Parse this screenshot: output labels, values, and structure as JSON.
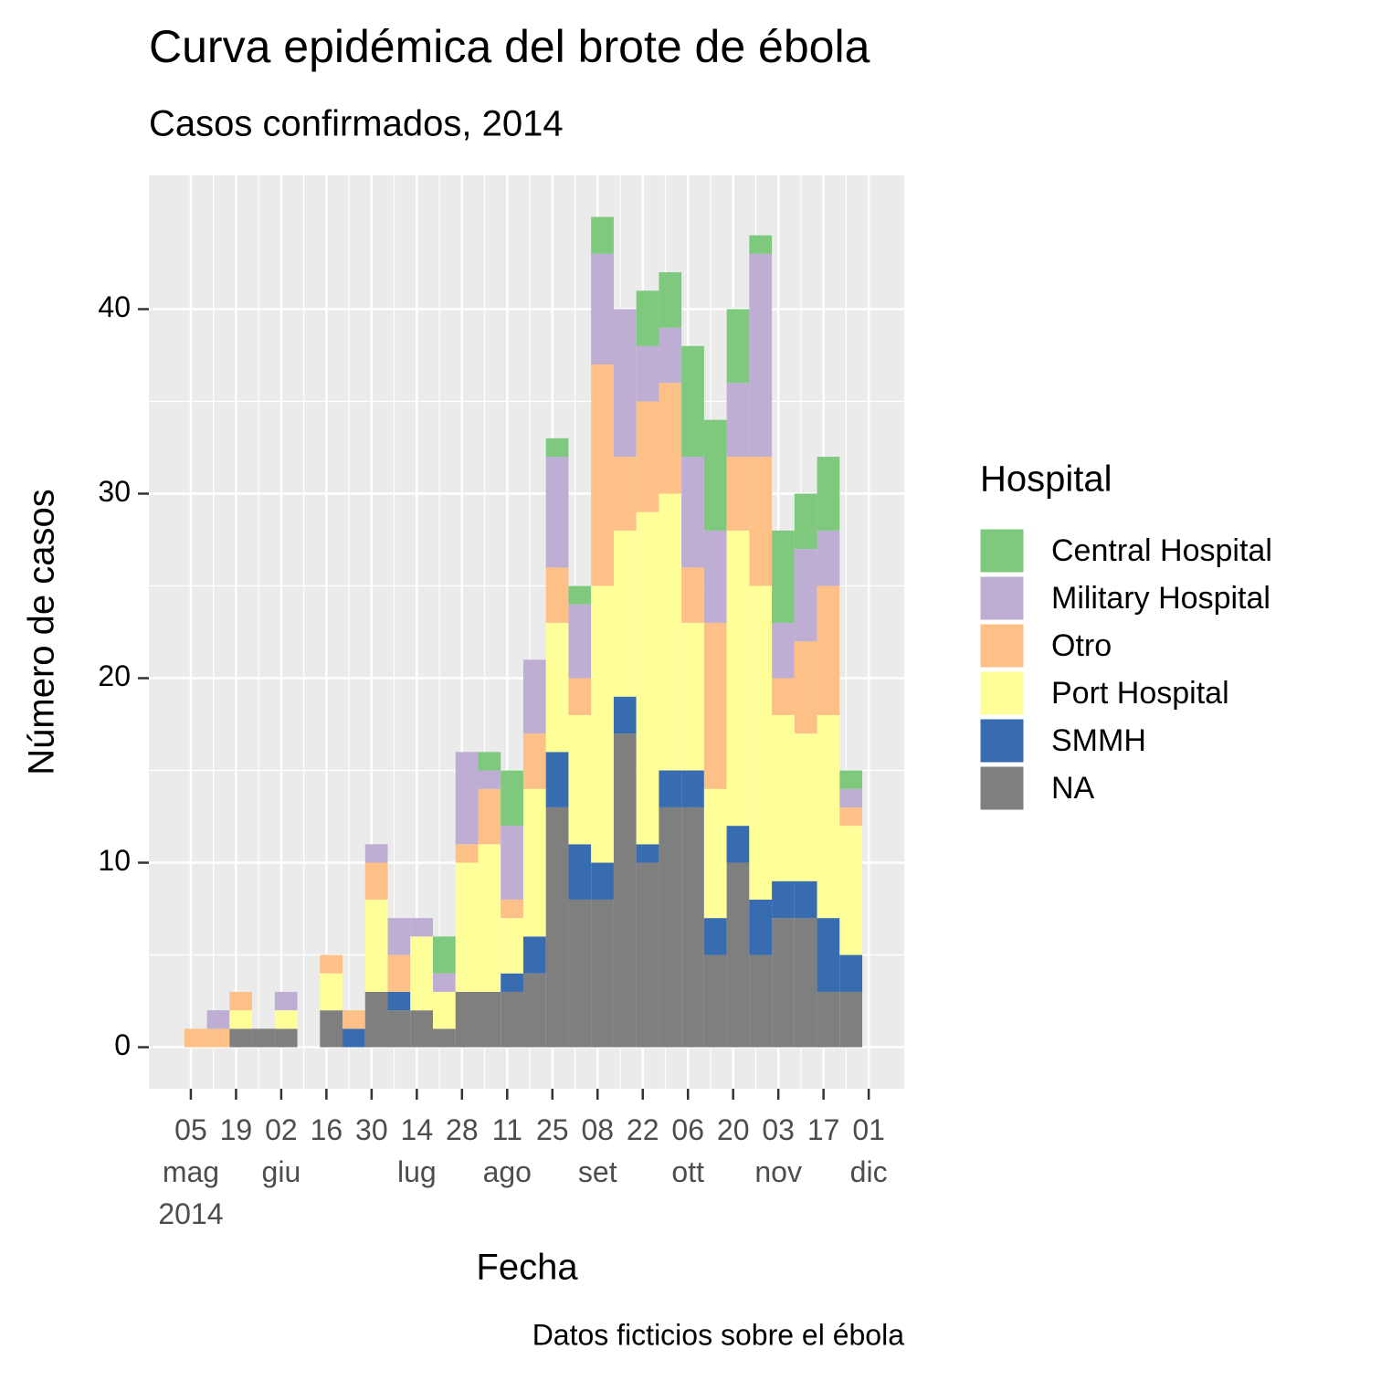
{
  "chart_data": {
    "type": "histogram",
    "title": "Curva epidémica del brote de ébola",
    "subtitle": "Casos confirmados, 2014",
    "x_label": "Fecha",
    "y_label": "Número de casos",
    "caption": "Datos ficticios sobre el ébola",
    "legend_title": "Hospital",
    "legend_position": "right",
    "stacked": true,
    "grid": true,
    "bins": [
      "2014-05-03",
      "2014-05-10",
      "2014-05-17",
      "2014-05-24",
      "2014-05-31",
      "2014-06-07",
      "2014-06-14",
      "2014-06-21",
      "2014-06-28",
      "2014-07-05",
      "2014-07-12",
      "2014-07-19",
      "2014-07-26",
      "2014-08-02",
      "2014-08-09",
      "2014-08-16",
      "2014-08-23",
      "2014-08-30",
      "2014-09-06",
      "2014-09-13",
      "2014-09-20",
      "2014-09-27",
      "2014-10-04",
      "2014-10-11",
      "2014-10-18",
      "2014-10-25",
      "2014-11-01",
      "2014-11-08",
      "2014-11-15",
      "2014-11-22",
      "2014-11-29"
    ],
    "series": [
      {
        "name": "Central Hospital",
        "color": "#7fc97f",
        "values": [
          0,
          0,
          0,
          0,
          0,
          0,
          0,
          0,
          0,
          0,
          0,
          2,
          0,
          1,
          3,
          0,
          1,
          1,
          2,
          0,
          3,
          3,
          6,
          6,
          4,
          1,
          5,
          3,
          4,
          1
        ]
      },
      {
        "name": "Military Hospital",
        "color": "#beaed4",
        "values": [
          0,
          1,
          0,
          0,
          1,
          0,
          0,
          0,
          1,
          2,
          1,
          1,
          5,
          1,
          4,
          4,
          6,
          4,
          6,
          8,
          3,
          3,
          6,
          5,
          4,
          11,
          3,
          5,
          3,
          1
        ]
      },
      {
        "name": "Otro",
        "color": "#fdc086",
        "values": [
          1,
          1,
          1,
          0,
          0,
          0,
          1,
          1,
          2,
          2,
          0,
          0,
          1,
          3,
          1,
          3,
          3,
          2,
          12,
          4,
          6,
          6,
          3,
          9,
          4,
          7,
          2,
          5,
          7,
          1
        ]
      },
      {
        "name": "Port Hospital",
        "color": "#ffff99",
        "values": [
          0,
          0,
          1,
          0,
          1,
          0,
          2,
          0,
          5,
          0,
          4,
          2,
          7,
          8,
          3,
          8,
          7,
          7,
          15,
          9,
          18,
          15,
          8,
          7,
          16,
          17,
          9,
          8,
          11,
          7
        ]
      },
      {
        "name": "SMMH",
        "color": "#386cb0",
        "values": [
          0,
          0,
          0,
          0,
          0,
          0,
          0,
          1,
          0,
          1,
          0,
          0,
          0,
          0,
          1,
          2,
          3,
          3,
          2,
          2,
          1,
          2,
          2,
          2,
          2,
          3,
          2,
          2,
          4,
          2
        ]
      },
      {
        "name": "NA",
        "color": "#7f7f7f",
        "values": [
          0,
          0,
          1,
          1,
          1,
          0,
          2,
          0,
          3,
          2,
          2,
          1,
          3,
          3,
          3,
          4,
          13,
          8,
          8,
          17,
          10,
          13,
          13,
          5,
          10,
          5,
          7,
          7,
          3,
          3
        ]
      }
    ],
    "xlim": [
      "2014-04-22",
      "2014-12-12"
    ],
    "xticks": [
      {
        "value": "2014-05-05",
        "label": "05\nmag\n2014"
      },
      {
        "value": "2014-05-19",
        "label": "19"
      },
      {
        "value": "2014-06-02",
        "label": "02\ngiu"
      },
      {
        "value": "2014-06-16",
        "label": "16"
      },
      {
        "value": "2014-06-30",
        "label": "30"
      },
      {
        "value": "2014-07-14",
        "label": "14\nlug"
      },
      {
        "value": "2014-07-28",
        "label": "28"
      },
      {
        "value": "2014-08-11",
        "label": "11\nago"
      },
      {
        "value": "2014-08-25",
        "label": "25"
      },
      {
        "value": "2014-09-08",
        "label": "08\nset"
      },
      {
        "value": "2014-09-22",
        "label": "22"
      },
      {
        "value": "2014-10-06",
        "label": "06\nott"
      },
      {
        "value": "2014-10-20",
        "label": "20"
      },
      {
        "value": "2014-11-03",
        "label": "03\nnov"
      },
      {
        "value": "2014-11-17",
        "label": "17"
      },
      {
        "value": "2014-12-01",
        "label": "01\ndic"
      }
    ],
    "ylim": [
      -2.25,
      47.25
    ],
    "yticks": [
      0,
      10,
      20,
      30,
      40
    ]
  }
}
